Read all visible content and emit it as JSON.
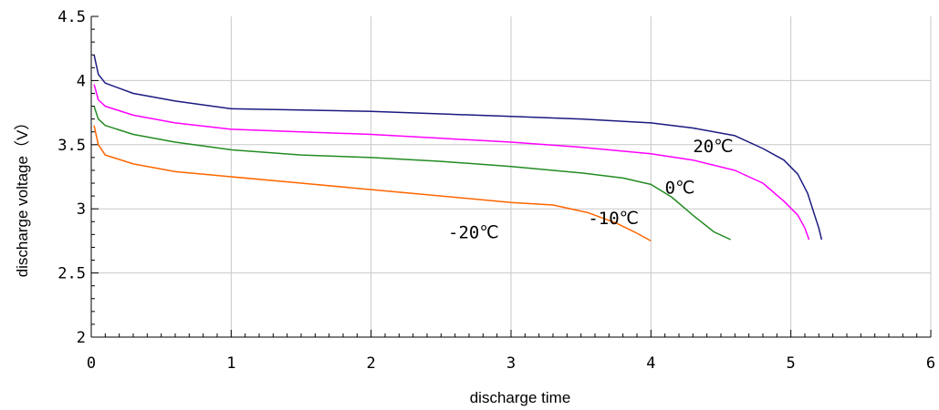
{
  "chart_data": {
    "type": "line",
    "xlabel": "discharge time",
    "ylabel": "discharge voltage（V）",
    "xlim": [
      0,
      6
    ],
    "ylim": [
      2,
      4.5
    ],
    "x_ticks": [
      "0",
      "1",
      "2",
      "3",
      "4",
      "5",
      "6"
    ],
    "y_ticks": [
      "2",
      "2.5",
      "3",
      "3.5",
      "4",
      "4.5"
    ],
    "grid": true,
    "legend": "none",
    "series": [
      {
        "name": "20℃",
        "color": "#1a1a80",
        "x": [
          0.02,
          0.05,
          0.1,
          0.3,
          0.6,
          1.0,
          1.5,
          2.0,
          2.5,
          3.0,
          3.5,
          4.0,
          4.3,
          4.6,
          4.8,
          4.95,
          5.05,
          5.12,
          5.17,
          5.2,
          5.22
        ],
        "y": [
          4.2,
          4.05,
          3.98,
          3.9,
          3.84,
          3.78,
          3.77,
          3.76,
          3.74,
          3.72,
          3.7,
          3.67,
          3.63,
          3.57,
          3.47,
          3.38,
          3.27,
          3.12,
          2.95,
          2.85,
          2.76
        ]
      },
      {
        "name": "10℃",
        "color": "#ff00ff",
        "x": [
          0.02,
          0.05,
          0.1,
          0.3,
          0.6,
          1.0,
          1.5,
          2.0,
          2.5,
          3.0,
          3.5,
          4.0,
          4.3,
          4.6,
          4.8,
          4.95,
          5.05,
          5.1,
          5.13
        ],
        "y": [
          3.97,
          3.85,
          3.8,
          3.73,
          3.67,
          3.62,
          3.6,
          3.58,
          3.55,
          3.52,
          3.48,
          3.43,
          3.38,
          3.3,
          3.2,
          3.06,
          2.95,
          2.85,
          2.76
        ]
      },
      {
        "name": "0℃",
        "color": "#228b22",
        "x": [
          0.02,
          0.05,
          0.1,
          0.3,
          0.6,
          1.0,
          1.5,
          2.0,
          2.5,
          3.0,
          3.5,
          3.8,
          4.0,
          4.15,
          4.3,
          4.45,
          4.57
        ],
        "y": [
          3.8,
          3.7,
          3.65,
          3.58,
          3.52,
          3.46,
          3.42,
          3.4,
          3.37,
          3.33,
          3.28,
          3.24,
          3.19,
          3.09,
          2.95,
          2.82,
          2.76
        ]
      },
      {
        "name": "-20℃",
        "color": "#ff6600",
        "x": [
          0.02,
          0.05,
          0.1,
          0.3,
          0.6,
          1.0,
          1.5,
          2.0,
          2.5,
          3.0,
          3.3,
          3.55,
          3.75,
          3.9,
          4.0
        ],
        "y": [
          3.65,
          3.5,
          3.42,
          3.35,
          3.29,
          3.25,
          3.2,
          3.15,
          3.1,
          3.05,
          3.03,
          2.97,
          2.89,
          2.81,
          2.75
        ]
      }
    ],
    "annotations": [
      {
        "text": "20℃",
        "x": 4.3,
        "y": 3.44
      },
      {
        "text": "0℃",
        "x": 4.1,
        "y": 3.12
      },
      {
        "text": "-10℃",
        "x": 3.55,
        "y": 2.88
      },
      {
        "text": "-20℃",
        "x": 2.55,
        "y": 2.77
      }
    ]
  }
}
